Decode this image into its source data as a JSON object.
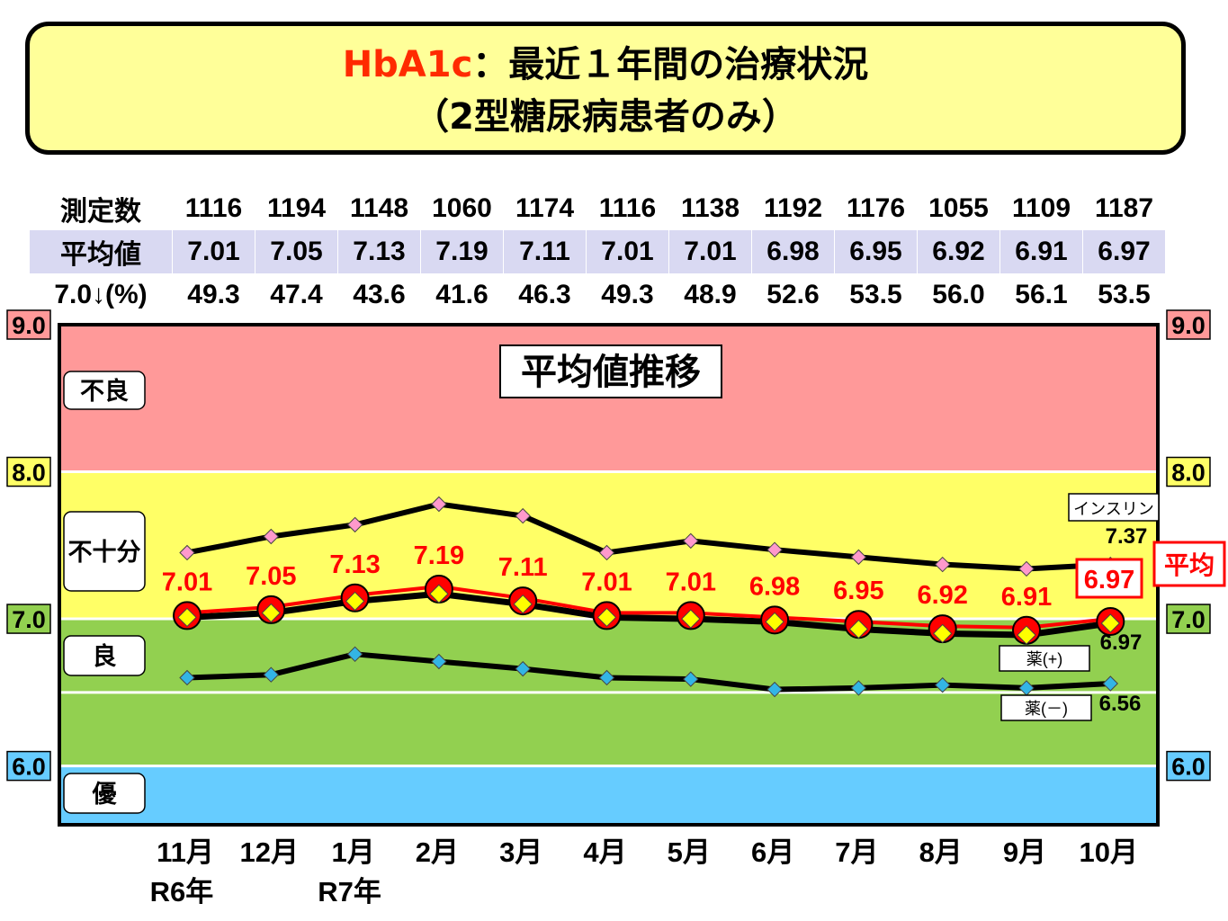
{
  "title": {
    "line1_red": "HbA1c",
    "line1_rest": "：最近１年間の治療状況",
    "line2": "（2型糖尿病患者のみ）"
  },
  "table": {
    "row_labels": [
      "測定数",
      "平均値",
      "7.0↓(%)"
    ],
    "counts": [
      "1116",
      "1194",
      "1148",
      "1060",
      "1174",
      "1116",
      "1138",
      "1192",
      "1176",
      "1055",
      "1109",
      "1187"
    ],
    "averages": [
      "7.01",
      "7.05",
      "7.13",
      "7.19",
      "7.11",
      "7.01",
      "7.01",
      "6.98",
      "6.95",
      "6.92",
      "6.91",
      "6.97"
    ],
    "percent_below_7": [
      "49.3",
      "47.4",
      "43.6",
      "41.6",
      "46.3",
      "49.3",
      "48.9",
      "52.6",
      "53.5",
      "56.0",
      "56.1",
      "53.5"
    ]
  },
  "colors": {
    "band_bad": "#ff9999",
    "band_insufficient": "#ffff66",
    "band_good": "#92d050",
    "band_excellent": "#66ccff",
    "avg_line": "#ff0000",
    "marker_yellow": "#ffff00",
    "marker_pink": "#ff99cc",
    "marker_blue": "#33b5e5",
    "title_bg": "#ffff99",
    "avg_row_bg": "#d9d9f2"
  },
  "chart_data": {
    "type": "line",
    "title": "平均値推移",
    "categories": [
      "11月",
      "12月",
      "1月",
      "2月",
      "3月",
      "4月",
      "5月",
      "6月",
      "7月",
      "8月",
      "9月",
      "10月"
    ],
    "year_labels": [
      {
        "index": 0,
        "text": "R6年"
      },
      {
        "index": 2,
        "text": "R7年"
      }
    ],
    "ylim": [
      5.6,
      9.0
    ],
    "yticks": [
      "9.0",
      "8.0",
      "7.0",
      "6.0"
    ],
    "bands": [
      {
        "label": "不良",
        "from": 8.0,
        "to": 9.0
      },
      {
        "label": "不十分",
        "from": 7.0,
        "to": 8.0
      },
      {
        "label": "良",
        "from": 6.0,
        "to": 7.0
      },
      {
        "label": "優",
        "from": 5.6,
        "to": 6.0
      }
    ],
    "series": [
      {
        "name": "インスリン",
        "values": [
          7.45,
          7.56,
          7.64,
          7.78,
          7.7,
          7.45,
          7.53,
          7.47,
          7.42,
          7.37,
          7.34,
          7.37
        ],
        "end_label": "7.37"
      },
      {
        "name": "平均",
        "values": [
          7.01,
          7.05,
          7.13,
          7.19,
          7.11,
          7.01,
          7.01,
          6.98,
          6.95,
          6.92,
          6.91,
          6.97
        ],
        "labels": [
          "7.01",
          "7.05",
          "7.13",
          "7.19",
          "7.11",
          "7.01",
          "7.01",
          "6.98",
          "6.95",
          "6.92",
          "6.91",
          "6.97"
        ]
      },
      {
        "name": "薬(+)",
        "values": [
          7.01,
          7.04,
          7.12,
          7.17,
          7.1,
          7.01,
          7.0,
          6.98,
          6.93,
          6.9,
          6.89,
          6.97
        ],
        "end_label": "6.97"
      },
      {
        "name": "薬(－)",
        "values": [
          6.6,
          6.62,
          6.76,
          6.71,
          6.66,
          6.6,
          6.59,
          6.52,
          6.53,
          6.55,
          6.53,
          6.56
        ],
        "end_label": "6.56"
      }
    ]
  }
}
